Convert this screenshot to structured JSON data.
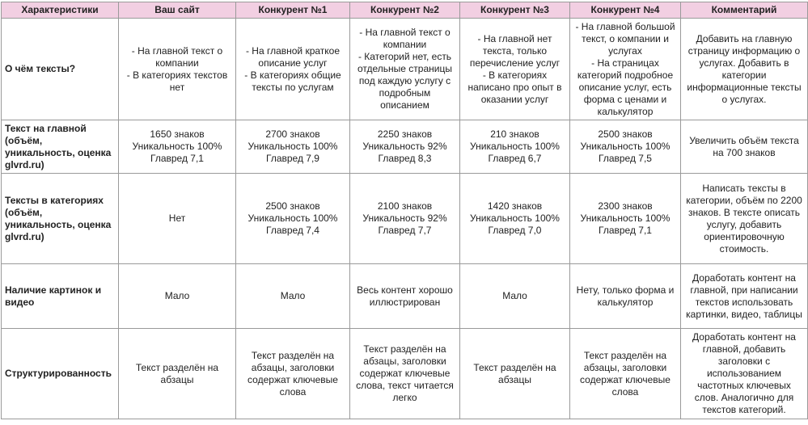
{
  "headers": [
    "Характеристики",
    "Ваш сайт",
    "Конкурент №1",
    "Конкурент №2",
    "Конкурент №3",
    "Конкурент №4",
    "Комментарий"
  ],
  "rows": [
    {
      "label": "О чём тексты?",
      "cells": [
        "- На главной текст о компании\n- В категориях текстов нет",
        "- На главной краткое описание услуг\n- В категориях общие тексты по услугам",
        "- На главной текст о компании\n- Категорий нет, есть отдельные страницы под каждую услугу с подробным описанием",
        "- На главной нет текста, только перечисление услуг\n- В категориях написано про опыт в оказании услуг",
        "- На главной большой текст, о компании и услугах\n- На страницах категорий подробное описание услуг, есть форма с ценами и калькулятор"
      ],
      "comment": "Добавить на главную страницу информацию о услугах. Добавить в категории информационные тексты о услугах."
    },
    {
      "label": "Текст на главной (объём, уникальность, оценка glvrd.ru)",
      "cells": [
        "1650 знаков\nУникальность 100%\nГлавред 7,1",
        "2700 знаков\nУникальность 100%\nГлавред 7,9",
        "2250 знаков\nУникальность 92%\nГлавред 8,3",
        "210 знаков\nУникальность 100%\nГлавред 6,7",
        "2500 знаков\nУникальность 100%\nГлавред 7,5"
      ],
      "comment": "Увеличить объём текста на 700 знаков"
    },
    {
      "label": "Тексты в категориях (объём, уникальность, оценка glvrd.ru)",
      "cells": [
        "Нет",
        "2500 знаков\nУникальность 100%\nГлавред 7,4",
        "2100 знаков\nУникальность 92%\nГлавред 7,7",
        "1420 знаков\nУникальность 100%\nГлавред 7,0",
        "2300 знаков\nУникальность 100%\nГлавред 7,1"
      ],
      "comment": "Написать тексты в категории, объём по 2200 знаков. В тексте описать услугу, добавить ориентировочную стоимость."
    },
    {
      "label": "Наличие картинок и видео",
      "cells": [
        "Мало",
        "Мало",
        "Весь контент хорошо иллюстрирован",
        "Мало",
        "Нету, только форма и калькулятор"
      ],
      "comment": "Доработать контент на главной, при написании текстов использовать картинки, видео, таблицы"
    },
    {
      "label": "Структурированность",
      "cells": [
        "Текст разделён на абзацы",
        "Текст разделён на абзацы, заголовки содержат ключевые слова",
        "Текст разделён на абзацы, заголовки содержат ключевые слова, текст читается легко",
        "Текст разделён на абзацы",
        "Текст разделён на абзацы, заголовки содержат ключевые слова"
      ],
      "comment": "Доработать контент на главной, добавить заголовки с использованием частотных ключевых слов. Аналогично для текстов категорий."
    }
  ]
}
